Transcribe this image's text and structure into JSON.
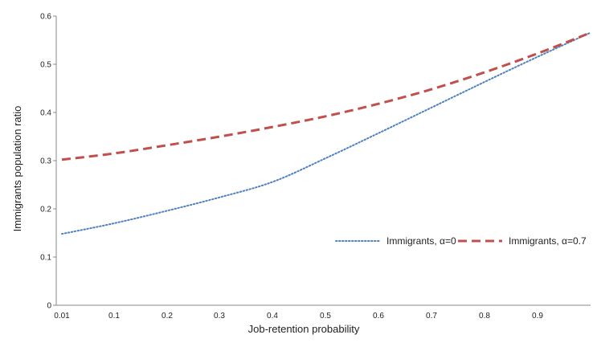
{
  "chart_data": {
    "type": "line",
    "xlabel": "Job-retention  probability",
    "ylabel": "Immigrants  population  ratio",
    "xlim": [
      0.01,
      1.0
    ],
    "ylim": [
      0,
      0.6
    ],
    "x_ticks": [
      "0.01",
      "0.1",
      "0.2",
      "0.3",
      "0.4",
      "0.5",
      "0.6",
      "0.7",
      "0.8",
      "0.9"
    ],
    "y_ticks": [
      "0",
      "0.1",
      "0.2",
      "0.3",
      "0.4",
      "0.5",
      "0.6"
    ],
    "grid": false,
    "legend_position": "center-right",
    "series": [
      {
        "name": "Immigrants,  α=0",
        "style": "dotted",
        "color": "#4F81BD",
        "x": [
          0.01,
          0.1,
          0.2,
          0.3,
          0.4,
          0.5,
          0.6,
          0.7,
          0.8,
          0.9,
          1.0
        ],
        "y": [
          0.148,
          0.17,
          0.196,
          0.224,
          0.256,
          0.305,
          0.357,
          0.41,
          0.463,
          0.515,
          0.565
        ]
      },
      {
        "name": "Immigrants,   α=0.7",
        "style": "dashed",
        "color": "#C0504D",
        "x": [
          0.01,
          0.1,
          0.2,
          0.3,
          0.4,
          0.5,
          0.6,
          0.7,
          0.8,
          0.9,
          1.0
        ],
        "y": [
          0.302,
          0.315,
          0.332,
          0.35,
          0.37,
          0.392,
          0.418,
          0.448,
          0.483,
          0.522,
          0.565
        ]
      }
    ]
  }
}
